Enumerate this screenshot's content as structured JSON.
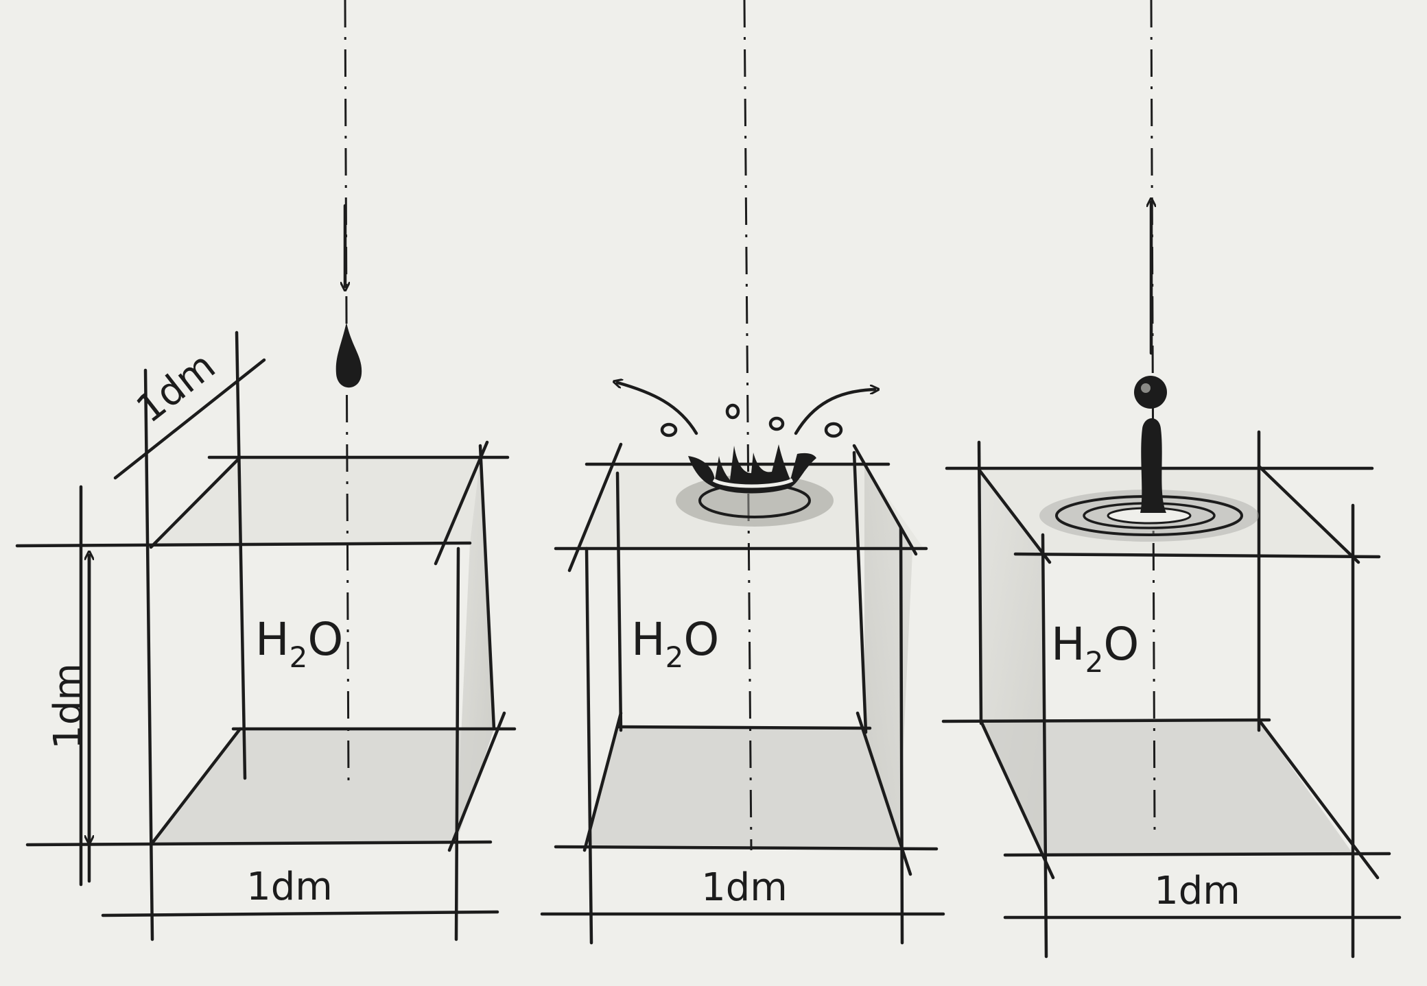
{
  "diagrams": [
    {
      "id": "falling-drop",
      "formula": {
        "main": "H",
        "sub": "2",
        "tail": "O"
      },
      "dims": {
        "height": "1dm",
        "width": "1dm",
        "depth": "1dm"
      },
      "drop_state": "falling"
    },
    {
      "id": "splash",
      "formula": {
        "main": "H",
        "sub": "2",
        "tail": "O"
      },
      "dims": {
        "width": "1dm"
      },
      "drop_state": "impact-splash"
    },
    {
      "id": "rebound",
      "formula": {
        "main": "H",
        "sub": "2",
        "tail": "O"
      },
      "dims": {
        "width": "1dm"
      },
      "drop_state": "rebound-jet"
    }
  ],
  "colors": {
    "ink": "#1c1c1c",
    "paper": "#efefeb",
    "shade": "#c9c9c4"
  }
}
